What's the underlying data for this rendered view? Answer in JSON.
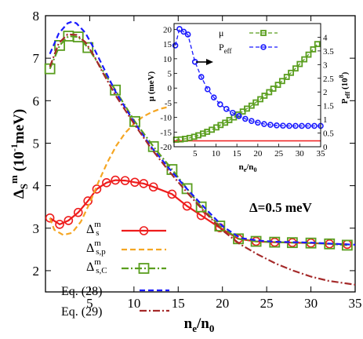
{
  "chart_data": [
    {
      "type": "line",
      "xlabel": "n",
      "xlabel_sub": "e",
      "xlabel_tail": "/n",
      "xlabel_sub2": "0",
      "ylabel": "Δ",
      "ylabel_sub": "S",
      "ylabel_sup": "m",
      "ylabel_unit": " (10",
      "ylabel_unit_sup": "-1",
      "ylabel_unit_tail": "meV)",
      "xlim": [
        0,
        35
      ],
      "ylim": [
        1.5,
        8
      ],
      "xticks": [
        5,
        10,
        15,
        20,
        25,
        30,
        35
      ],
      "xtick_labels": [
        "5",
        "10",
        "15",
        "20",
        "25",
        "30",
        "35"
      ],
      "yticks": [
        2,
        3,
        4,
        5,
        6,
        7,
        8
      ],
      "ytick_labels": [
        "2",
        "3",
        "4",
        "5",
        "6",
        "7",
        "8"
      ],
      "grid": false,
      "legend_position": "bottom-left",
      "annotation": "Δ=0.5 meV",
      "series": [
        {
          "key": "s",
          "label_main": "Δ",
          "label_sub": "s",
          "label_sup": "m",
          "color": "#ee1c1c",
          "style": "solid-circle",
          "x": [
            0.5,
            1.6,
            2.6,
            3.7,
            4.8,
            5.8,
            6.9,
            7.9,
            9.0,
            10.1,
            11.1,
            12.2,
            14.3,
            16.0,
            17.6,
            19.7,
            21.8,
            23.8,
            25.9,
            27.9,
            30.0,
            32.1,
            34.1
          ],
          "y": [
            3.24,
            3.09,
            3.18,
            3.37,
            3.64,
            3.92,
            4.07,
            4.13,
            4.12,
            4.08,
            4.05,
            3.97,
            3.8,
            3.52,
            3.3,
            3.01,
            2.75,
            2.69,
            2.67,
            2.66,
            2.65,
            2.63,
            2.62
          ]
        },
        {
          "key": "sp",
          "label_main": "Δ",
          "label_sub": "s,p",
          "label_sup": "m",
          "color": "#f5a623",
          "style": "dashed",
          "x": [
            0.5,
            1.0,
            2.0,
            3.0,
            4.0,
            5.0,
            6.0,
            7.0,
            8.0,
            9.0,
            10.0,
            11.0,
            12.0,
            13.0,
            14.0
          ],
          "y": [
            3.24,
            2.96,
            2.84,
            2.89,
            3.15,
            3.59,
            4.09,
            4.55,
            4.94,
            5.24,
            5.46,
            5.62,
            5.73,
            5.81,
            5.86
          ]
        },
        {
          "key": "sC",
          "label_main": "Δ",
          "label_sub": "s,C",
          "label_sup": "m",
          "color": "#5a9e1f",
          "style": "dashdot-square",
          "x": [
            0.5,
            1.6,
            2.6,
            3.7,
            4.8,
            7.9,
            10.1,
            12.2,
            14.3,
            16.0,
            17.6,
            19.7,
            21.8,
            23.8,
            25.9,
            27.9,
            30.0,
            32.1,
            34.1
          ],
          "y": [
            6.75,
            7.3,
            7.52,
            7.5,
            7.25,
            6.25,
            5.51,
            4.92,
            4.38,
            3.93,
            3.5,
            3.05,
            2.75,
            2.69,
            2.67,
            2.66,
            2.65,
            2.63,
            2.6
          ]
        },
        {
          "key": "eq28",
          "label_main": "Eq. (28)",
          "color": "#1a1aff",
          "style": "dashed",
          "x": [
            0.5,
            1.5,
            2.5,
            3.0,
            3.5,
            4.5,
            5.5,
            6.5,
            8.0,
            10.0,
            12.0,
            14.0,
            16.0,
            18.0,
            20.0,
            22.0,
            24.0,
            26.0,
            28.0,
            30.0,
            32.0,
            35.0
          ],
          "y": [
            7.1,
            7.58,
            7.82,
            7.86,
            7.82,
            7.6,
            7.22,
            6.8,
            6.18,
            5.5,
            4.9,
            4.4,
            3.92,
            3.48,
            3.05,
            2.77,
            2.71,
            2.68,
            2.67,
            2.66,
            2.64,
            2.61
          ]
        },
        {
          "key": "eq29",
          "label_main": "Eq. (29)",
          "color": "#a52a2a",
          "style": "dashdot",
          "x": [
            0.5,
            1.5,
            2.5,
            3.5,
            4.5,
            5.5,
            6.5,
            8.0,
            10.0,
            12.0,
            14.0,
            16.0,
            18.0,
            20.0,
            22.0,
            24.0,
            26.0,
            28.0,
            30.0,
            32.0,
            35.0
          ],
          "y": [
            6.8,
            7.35,
            7.56,
            7.55,
            7.38,
            7.05,
            6.65,
            6.1,
            5.46,
            4.86,
            4.33,
            3.84,
            3.38,
            2.95,
            2.62,
            2.38,
            2.17,
            2.0,
            1.86,
            1.76,
            1.67
          ]
        }
      ]
    },
    {
      "type": "line",
      "xlabel": "n",
      "xlabel_sub": "e",
      "xlabel_tail": "/n",
      "xlabel_sub2": "0",
      "ylabel_left": "μ (meV)",
      "ylabel_right": "P",
      "ylabel_right_sub": "eff",
      "ylabel_right_unit": " (10",
      "ylabel_right_unit_sup": "8",
      "ylabel_right_unit_tail": ")",
      "xlim": [
        0,
        35
      ],
      "ylim_left": [
        -20,
        22
      ],
      "ylim_right": [
        0,
        4.5
      ],
      "xticks": [
        5,
        10,
        15,
        20,
        25,
        30,
        35
      ],
      "xtick_labels": [
        "5",
        "10",
        "15",
        "20",
        "25",
        "30",
        "35"
      ],
      "yticks_left": [
        -20,
        -15,
        -10,
        -5,
        0,
        5,
        10,
        15,
        20
      ],
      "ytick_labels_left": [
        "-20",
        "-15",
        "-10",
        "-5",
        "0",
        "5",
        "10",
        "15",
        "20"
      ],
      "yticks_right": [
        0,
        0.5,
        1,
        1.5,
        2,
        2.5,
        3,
        3.5,
        4
      ],
      "ytick_labels_right": [
        "0",
        "0.5",
        "1",
        "1.5",
        "2",
        "2.5",
        "3",
        "3.5",
        "4"
      ],
      "hline_left": -18,
      "hline_color": "#ee1c1c",
      "legend_position": "top-right",
      "series": [
        {
          "key": "mu",
          "label_main": "μ",
          "axis": "left",
          "color": "#5a9e1f",
          "style": "dashdot-square",
          "x": [
            0.5,
            1.6,
            2.6,
            3.7,
            4.8,
            5.8,
            6.9,
            7.9,
            9.0,
            10.1,
            11.1,
            12.2,
            13.2,
            14.3,
            15.3,
            16.4,
            17.4,
            18.5,
            19.5,
            20.6,
            21.6,
            22.7,
            23.7,
            24.8,
            25.8,
            26.9,
            27.9,
            29.0,
            30.0,
            31.1,
            32.1,
            33.2,
            34.2
          ],
          "y": [
            -17.6,
            -17.5,
            -17.3,
            -17.0,
            -16.6,
            -16.1,
            -15.5,
            -14.9,
            -14.2,
            -13.4,
            -12.6,
            -11.8,
            -10.9,
            -10.0,
            -9.0,
            -8.0,
            -7.0,
            -6.0,
            -4.9,
            -3.8,
            -2.6,
            -1.4,
            -0.2,
            1.1,
            2.4,
            3.8,
            5.2,
            6.7,
            8.2,
            9.8,
            11.4,
            13.2,
            15.0
          ]
        },
        {
          "key": "peff",
          "label_main": "P",
          "label_sub": "eff",
          "axis": "right",
          "color": "#1a1aff",
          "style": "dashed-circle",
          "x": [
            0.3,
            1.3,
            2.3,
            3.3,
            5.0,
            6.5,
            8.0,
            9.5,
            11.0,
            12.5,
            14.0,
            15.5,
            17.0,
            18.5,
            20.0,
            21.5,
            23.0,
            24.5,
            26.0,
            27.5,
            29.0,
            30.5,
            32.0,
            33.5,
            35.0
          ],
          "y": [
            3.7,
            4.3,
            4.2,
            4.1,
            3.1,
            2.55,
            2.1,
            1.8,
            1.55,
            1.38,
            1.24,
            1.12,
            1.02,
            0.94,
            0.88,
            0.83,
            0.8,
            0.78,
            0.77,
            0.76,
            0.76,
            0.76,
            0.76,
            0.76,
            0.76
          ]
        }
      ]
    }
  ]
}
